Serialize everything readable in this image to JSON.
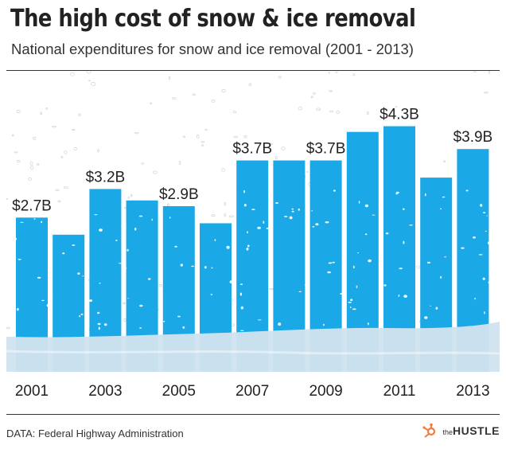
{
  "header": {
    "title": "The high cost of snow & ice removal",
    "subtitle": "National expenditures for snow and ice removal (2001 - 2013)"
  },
  "footer": {
    "source": "DATA: Federal Highway Administration",
    "brand_prefix": "the",
    "brand_name": "HUSTLE",
    "hubspot_icon": "hubspot-sprocket-icon"
  },
  "colors": {
    "bar": "#1aa8e6",
    "snow": "#cfe3ee",
    "text": "#222222",
    "rule": "#333333",
    "hubspot": "#f07b3f"
  },
  "chart_data": {
    "type": "bar",
    "title": "The high cost of snow & ice removal",
    "subtitle": "National expenditures for snow and ice removal (2001 - 2013)",
    "xlabel": "",
    "ylabel": "",
    "unit": "USD billions",
    "ylim": [
      0,
      4.9
    ],
    "grid": false,
    "categories": [
      "2001",
      "2002",
      "2003",
      "2004",
      "2005",
      "2006",
      "2007",
      "2008",
      "2009",
      "2010",
      "2011",
      "2012",
      "2013"
    ],
    "values": [
      2.7,
      2.4,
      3.2,
      3.0,
      2.9,
      2.6,
      3.7,
      3.7,
      3.7,
      4.2,
      4.3,
      3.4,
      3.9
    ],
    "data_labels": [
      "$2.7B",
      "",
      "$3.2B",
      "",
      "$2.9B",
      "",
      "$3.7B",
      "",
      "$3.7B",
      "",
      "$4.3B",
      "",
      "$3.9B"
    ],
    "tick_labels": [
      "2001",
      "",
      "2003",
      "",
      "2005",
      "",
      "2007",
      "",
      "2009",
      "",
      "2011",
      "",
      "2013"
    ]
  }
}
